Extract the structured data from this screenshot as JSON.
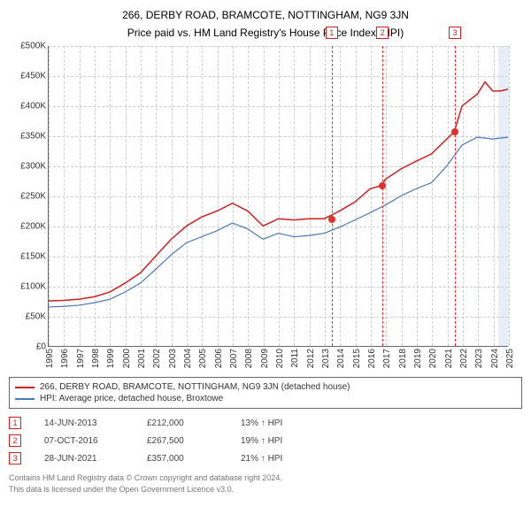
{
  "header": {
    "title": "266, DERBY ROAD, BRAMCOTE, NOTTINGHAM, NG9 3JN",
    "subtitle": "Price paid vs. HM Land Registry's House Price Index (HPI)"
  },
  "chart": {
    "type": "line",
    "ylim": [
      0,
      500000
    ],
    "ytick_step": 50000,
    "y_ticks": [
      "£0",
      "£50K",
      "£100K",
      "£150K",
      "£200K",
      "£250K",
      "£300K",
      "£350K",
      "£400K",
      "£450K",
      "£500K"
    ],
    "x_years": [
      1995,
      1996,
      1997,
      1998,
      1999,
      2000,
      2001,
      2002,
      2003,
      2004,
      2005,
      2006,
      2007,
      2008,
      2009,
      2010,
      2011,
      2012,
      2013,
      2014,
      2015,
      2016,
      2017,
      2018,
      2019,
      2020,
      2021,
      2022,
      2023,
      2024,
      2025
    ],
    "projected_start_year": 2024.3,
    "background_color": "#ffffff",
    "grid_color": "#cccccc",
    "grid_dash": "3,3",
    "projected_band_color": "#e8eef7",
    "label_fontsize": 10,
    "series": [
      {
        "name": "price_paid",
        "label": "266, DERBY ROAD, BRAMCOTE, NOTTINGHAM, NG9 3JN (detached house)",
        "color": "#d02020",
        "line_width": 1.5,
        "data": [
          [
            1995,
            75000
          ],
          [
            1996,
            76000
          ],
          [
            1997,
            78000
          ],
          [
            1998,
            82000
          ],
          [
            1999,
            90000
          ],
          [
            2000,
            105000
          ],
          [
            2001,
            122000
          ],
          [
            2002,
            150000
          ],
          [
            2003,
            178000
          ],
          [
            2004,
            200000
          ],
          [
            2005,
            215000
          ],
          [
            2006,
            225000
          ],
          [
            2007,
            238000
          ],
          [
            2008,
            225000
          ],
          [
            2009,
            200000
          ],
          [
            2010,
            212000
          ],
          [
            2011,
            210000
          ],
          [
            2012,
            212000
          ],
          [
            2013,
            212000
          ],
          [
            2014,
            225000
          ],
          [
            2015,
            240000
          ],
          [
            2016,
            262000
          ],
          [
            2016.76,
            267500
          ],
          [
            2017,
            278000
          ],
          [
            2018,
            295000
          ],
          [
            2019,
            308000
          ],
          [
            2020,
            320000
          ],
          [
            2021,
            345000
          ],
          [
            2021.49,
            357000
          ],
          [
            2022,
            400000
          ],
          [
            2023,
            420000
          ],
          [
            2023.5,
            440000
          ],
          [
            2024,
            425000
          ],
          [
            2024.5,
            425000
          ],
          [
            2025,
            428000
          ]
        ]
      },
      {
        "name": "hpi",
        "label": "HPI: Average price, detached house, Broxtowe",
        "color": "#4a78c0",
        "line_width": 1.2,
        "data": [
          [
            1995,
            65000
          ],
          [
            1996,
            66000
          ],
          [
            1997,
            68000
          ],
          [
            1998,
            72000
          ],
          [
            1999,
            78000
          ],
          [
            2000,
            90000
          ],
          [
            2001,
            105000
          ],
          [
            2002,
            128000
          ],
          [
            2003,
            152000
          ],
          [
            2004,
            172000
          ],
          [
            2005,
            182000
          ],
          [
            2006,
            192000
          ],
          [
            2007,
            205000
          ],
          [
            2008,
            195000
          ],
          [
            2009,
            178000
          ],
          [
            2010,
            188000
          ],
          [
            2011,
            182000
          ],
          [
            2012,
            184000
          ],
          [
            2013,
            188000
          ],
          [
            2014,
            198000
          ],
          [
            2015,
            210000
          ],
          [
            2016,
            222000
          ],
          [
            2017,
            235000
          ],
          [
            2018,
            250000
          ],
          [
            2019,
            262000
          ],
          [
            2020,
            272000
          ],
          [
            2021,
            300000
          ],
          [
            2022,
            335000
          ],
          [
            2023,
            348000
          ],
          [
            2024,
            345000
          ],
          [
            2025,
            348000
          ]
        ]
      }
    ],
    "sale_markers": [
      {
        "n": "1",
        "year": 2013.45,
        "price": 212000
      },
      {
        "n": "2",
        "year": 2016.76,
        "price": 267500
      },
      {
        "n": "3",
        "year": 2021.49,
        "price": 357000
      }
    ],
    "marker_color": "#e03030",
    "marker_box_border": "#d02020"
  },
  "legend": {
    "items": [
      {
        "bind": "chart.series.0.label",
        "color": "#d02020"
      },
      {
        "bind": "chart.series.1.label",
        "color": "#4a78c0"
      }
    ]
  },
  "sales": [
    {
      "n": "1",
      "date": "14-JUN-2013",
      "price": "£212,000",
      "pct": "13% ↑ HPI"
    },
    {
      "n": "2",
      "date": "07-OCT-2016",
      "price": "£267,500",
      "pct": "19% ↑ HPI"
    },
    {
      "n": "3",
      "date": "28-JUN-2021",
      "price": "£357,000",
      "pct": "21% ↑ HPI"
    }
  ],
  "footer": {
    "line1": "Contains HM Land Registry data © Crown copyright and database right 2024.",
    "line2": "This data is licensed under the Open Government Licence v3.0."
  }
}
